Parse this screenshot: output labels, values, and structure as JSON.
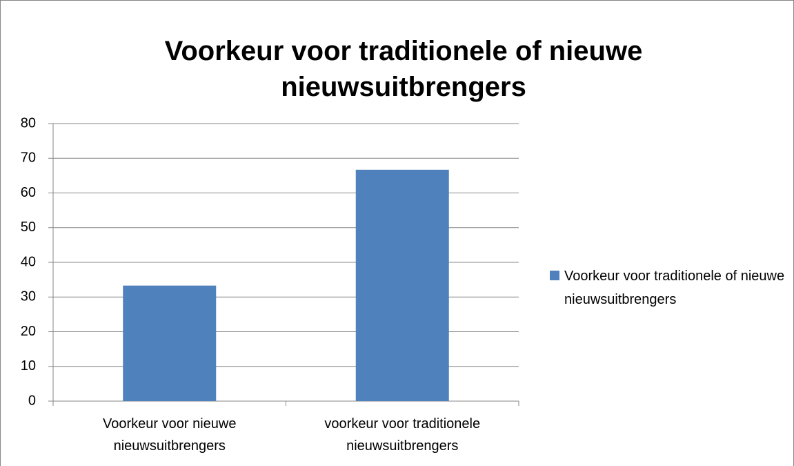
{
  "chart_data": {
    "type": "bar",
    "title": "Voorkeur voor traditionele of nieuwe nieuwsuitbrengers",
    "categories": [
      "Voorkeur voor nieuwe nieuwsuitbrengers",
      "voorkeur voor traditionele nieuwsuitbrengers"
    ],
    "series": [
      {
        "name": "Voorkeur voor traditionele of nieuwe nieuwsuitbrengers",
        "color": "#4f81bd",
        "values": [
          33.3,
          66.7
        ]
      }
    ],
    "ylim": [
      0,
      80
    ],
    "yticks": [
      0,
      10,
      20,
      30,
      40,
      50,
      60,
      70,
      80
    ],
    "grid": true,
    "legend": "right"
  }
}
